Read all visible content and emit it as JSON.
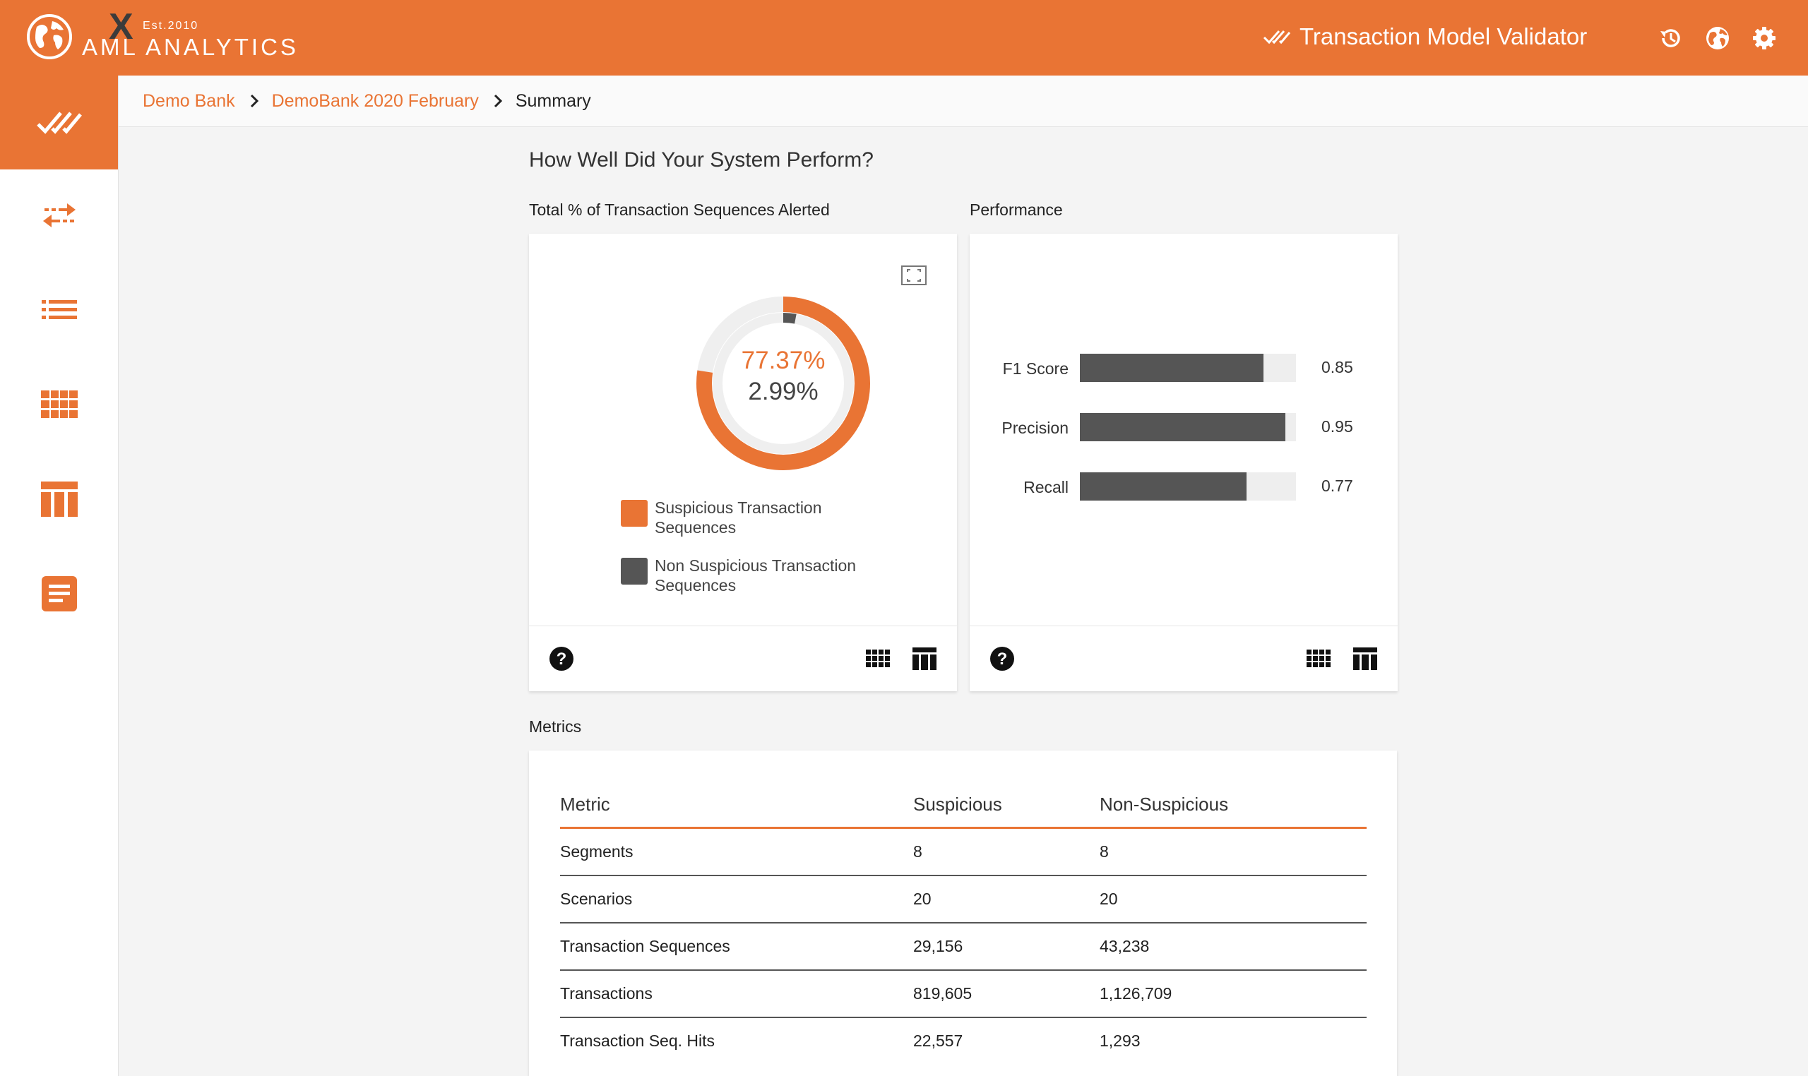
{
  "header": {
    "logo": {
      "est": "Est.2010",
      "name": "AML ANALYTICS",
      "x_mark": "X"
    },
    "app_title": "Transaction Model Validator",
    "icons": [
      "history-icon",
      "globe-icon",
      "gear-icon"
    ],
    "accent_color": "#e97434"
  },
  "sidebar": {
    "items": [
      {
        "icon": "double-check-icon",
        "active": true
      },
      {
        "icon": "transfer-arrows-icon"
      },
      {
        "icon": "list-icon"
      },
      {
        "icon": "grid-icon"
      },
      {
        "icon": "table-columns-icon"
      },
      {
        "icon": "document-icon"
      }
    ]
  },
  "breadcrumb": [
    "Demo Bank",
    "DemoBank 2020 February",
    "Summary"
  ],
  "page": {
    "heading": "How Well Did Your System Perform?",
    "alerted_title": "Total % of Transaction Sequences Alerted",
    "performance_title": "Performance",
    "metrics_title": "Metrics"
  },
  "chart_data": [
    {
      "type": "pie",
      "title": "Total % of Transaction Sequences Alerted",
      "center_labels": [
        "77.37%",
        "2.99%"
      ],
      "series": [
        {
          "name": "Suspicious Transaction Sequences",
          "value": 77.37,
          "color": "#e97434"
        },
        {
          "name": "Non Suspicious Transaction Sequences",
          "value": 2.99,
          "color": "#555555"
        }
      ]
    },
    {
      "type": "bar",
      "title": "Performance",
      "orientation": "horizontal",
      "categories": [
        "F1 Score",
        "Precision",
        "Recall"
      ],
      "values": [
        0.85,
        0.95,
        0.77
      ],
      "value_labels": [
        "0.85",
        "0.95",
        "0.77"
      ],
      "xlim": [
        0,
        1
      ],
      "bar_color": "#555555"
    }
  ],
  "metrics": {
    "headers": [
      "Metric",
      "Suspicious",
      "Non-Suspicious"
    ],
    "rows": [
      [
        "Segments",
        "8",
        "8"
      ],
      [
        "Scenarios",
        "20",
        "20"
      ],
      [
        "Transaction Sequences",
        "29,156",
        "43,238"
      ],
      [
        "Transactions",
        "819,605",
        "1,126,709"
      ],
      [
        "Transaction Seq. Hits",
        "22,557",
        "1,293"
      ]
    ]
  }
}
